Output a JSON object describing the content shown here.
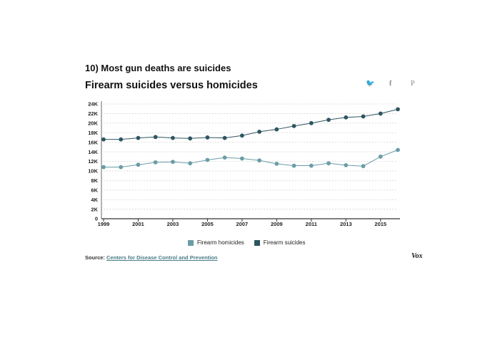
{
  "header": {
    "kicker": "10) Most gun deaths are suicides",
    "title": "Firearm suicides versus homicides"
  },
  "share": {
    "twitter_icon": "twitter-icon",
    "facebook_icon": "facebook-icon",
    "pinterest_icon": "pinterest-icon",
    "twitter_glyph": "🐦",
    "facebook_glyph": "f",
    "pinterest_glyph": "P"
  },
  "chart_data": {
    "type": "line",
    "x": [
      1999,
      2000,
      2001,
      2002,
      2003,
      2004,
      2005,
      2006,
      2007,
      2008,
      2009,
      2010,
      2011,
      2012,
      2013,
      2014,
      2015,
      2016
    ],
    "x_tick_labels": [
      "1999",
      "2001",
      "2003",
      "2005",
      "2007",
      "2009",
      "2011",
      "2013",
      "2015"
    ],
    "x_ticks": [
      1999,
      2001,
      2003,
      2005,
      2007,
      2009,
      2011,
      2013,
      2015
    ],
    "y_tick_labels": [
      "0",
      "2K",
      "4K",
      "6K",
      "8K",
      "10K",
      "12K",
      "14K",
      "16K",
      "18K",
      "20K",
      "22K",
      "24K"
    ],
    "y_ticks": [
      0,
      2000,
      4000,
      6000,
      8000,
      10000,
      12000,
      14000,
      16000,
      18000,
      20000,
      22000,
      24000
    ],
    "ylim": [
      0,
      24000
    ],
    "xlim": [
      1999,
      2016
    ],
    "grid": true,
    "legend_position": "bottom",
    "series": [
      {
        "name": "Firearm homicides",
        "color": "#6a9da6",
        "values": [
          10800,
          10800,
          11300,
          11800,
          11900,
          11600,
          12300,
          12800,
          12600,
          12200,
          11500,
          11100,
          11100,
          11600,
          11200,
          11000,
          13000,
          14400
        ]
      },
      {
        "name": "Firearm suicides",
        "color": "#2e5560",
        "values": [
          16600,
          16600,
          16900,
          17100,
          16900,
          16800,
          17000,
          16900,
          17400,
          18200,
          18700,
          19400,
          20000,
          20700,
          21200,
          21400,
          22000,
          22900
        ]
      }
    ]
  },
  "source": {
    "label": "Source:",
    "link_text": "Centers for Disease Control and Prevention"
  },
  "logo": {
    "text": "Vox"
  }
}
